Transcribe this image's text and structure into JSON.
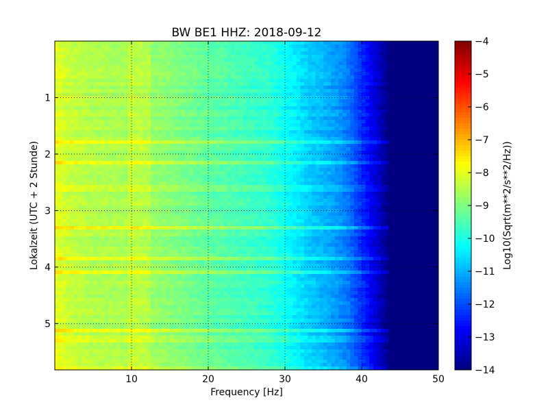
{
  "chart_data": {
    "type": "heatmap",
    "title": "BW BE1 HHZ: 2018-09-12",
    "xlabel": "Frequency [Hz]",
    "ylabel": "Lokalzeit (UTC + 2 Stunde)",
    "xlim": [
      0,
      50
    ],
    "ylim": [
      0,
      5.82
    ],
    "y_inverted": true,
    "x_ticks": [
      10,
      20,
      30,
      40,
      50
    ],
    "y_ticks": [
      1,
      2,
      3,
      4,
      5
    ],
    "grid": true,
    "grid_style": "dotted",
    "colormap": "jet",
    "colorbar": {
      "label": "Log10(Sqrt(m**2/s**2/Hz))",
      "range": [
        -14,
        -4
      ],
      "ticks": [
        -4,
        -5,
        -6,
        -7,
        -8,
        -9,
        -10,
        -11,
        -12,
        -13,
        -14
      ]
    },
    "spectrum_profile": {
      "frequency_hz": [
        0,
        2,
        5,
        10,
        15,
        20,
        25,
        28,
        31,
        33,
        36,
        38,
        40,
        42,
        43.5,
        44,
        50
      ],
      "level": [
        -8.0,
        -8.3,
        -8.5,
        -8.6,
        -8.9,
        -9.3,
        -9.6,
        -9.8,
        -10.3,
        -10.7,
        -11.1,
        -11.5,
        -12.3,
        -13.2,
        -14.0,
        -14.0,
        -14.0
      ]
    },
    "noise_bands_hours": [
      1.8,
      2.15,
      2.6,
      3.3,
      3.85,
      4.1,
      5.12,
      5.28,
      5.78
    ]
  }
}
